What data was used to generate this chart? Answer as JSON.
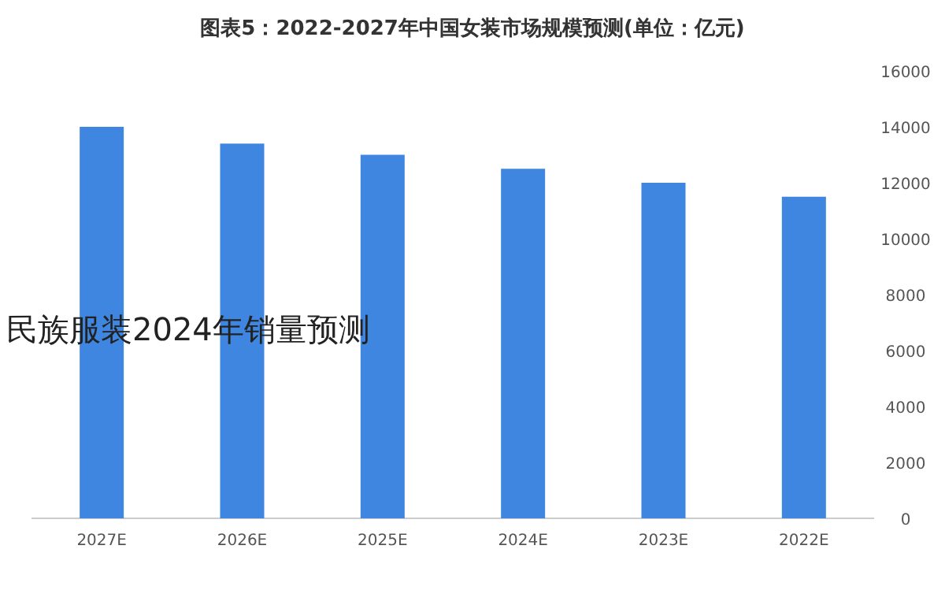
{
  "chart_data": {
    "type": "bar",
    "title": "图表5：2022-2027年中国女装市场规模预测(单位：亿元)",
    "annotations": [
      "民族服装2024年销量预测"
    ],
    "categories": [
      "2027E",
      "2026E",
      "2025E",
      "2024E",
      "2023E",
      "2022E"
    ],
    "values": [
      14000,
      13400,
      13000,
      12500,
      12000,
      11500
    ],
    "color": "#3f86e0",
    "ylim": [
      0,
      16000
    ],
    "yticks": [
      0,
      2000,
      4000,
      6000,
      8000,
      10000,
      12000,
      14000,
      16000
    ]
  }
}
